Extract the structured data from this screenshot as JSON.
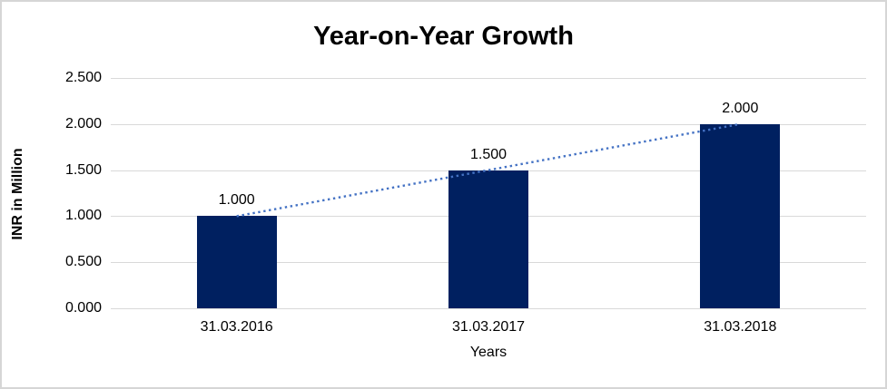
{
  "chart": {
    "title": "Year-on-Year Growth",
    "ylabel": "INR in Million",
    "xlabel": "Years"
  },
  "chart_data": {
    "type": "bar",
    "title": "Year-on-Year Growth",
    "xlabel": "Years",
    "ylabel": "INR in Million",
    "categories": [
      "31.03.2016",
      "31.03.2017",
      "31.03.2018"
    ],
    "values": [
      1.0,
      1.5,
      2.0
    ],
    "data_labels": [
      "1.000",
      "1.500",
      "2.000"
    ],
    "yticks": [
      "0.000",
      "0.500",
      "1.000",
      "1.500",
      "2.000",
      "2.500"
    ],
    "ylim": [
      0,
      2.5
    ],
    "grid": "horizontal",
    "legend_position": "none",
    "bar_color": "#002060",
    "trendline": {
      "type": "linear",
      "style": "dotted",
      "color": "#4472C4",
      "from_value": 1.0,
      "to_value": 2.0
    },
    "gridline_color": "#d9d9d9",
    "background_color": "#ffffff"
  }
}
